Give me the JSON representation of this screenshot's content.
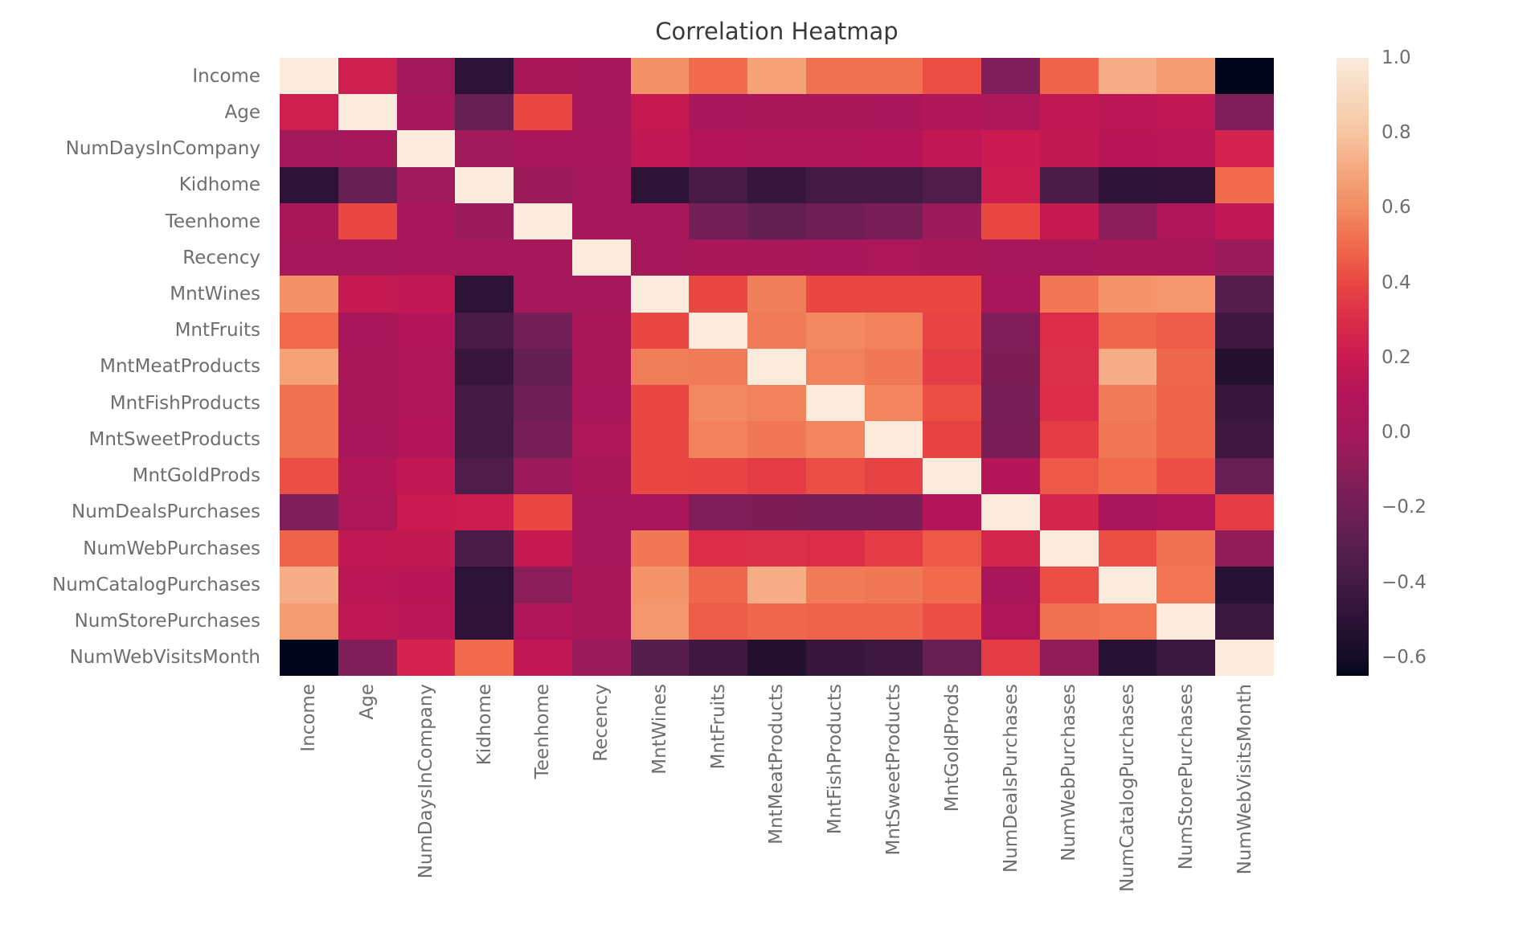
{
  "chart_data": {
    "type": "heatmap",
    "title": "Correlation Heatmap",
    "legend_position": "right",
    "grid": false,
    "labels": [
      "Income",
      "Age",
      "NumDaysInCompany",
      "Kidhome",
      "Teenhome",
      "Recency",
      "MntWines",
      "MntFruits",
      "MntMeatProducts",
      "MntFishProducts",
      "MntSweetProducts",
      "MntGoldProds",
      "NumDealsPurchases",
      "NumWebPurchases",
      "NumCatalogPurchases",
      "NumStorePurchases",
      "NumWebVisitsMonth"
    ],
    "matrix": [
      [
        1.0,
        0.22,
        -0.02,
        -0.5,
        0.03,
        0.0,
        0.62,
        0.5,
        0.68,
        0.52,
        0.52,
        0.42,
        -0.15,
        0.48,
        0.72,
        0.65,
        -0.65
      ],
      [
        0.22,
        1.0,
        0.0,
        -0.25,
        0.4,
        0.0,
        0.18,
        0.02,
        0.03,
        0.03,
        0.02,
        0.08,
        0.04,
        0.16,
        0.14,
        0.15,
        -0.15
      ],
      [
        -0.02,
        0.0,
        1.0,
        -0.03,
        0.02,
        0.02,
        0.16,
        0.1,
        0.08,
        0.08,
        0.1,
        0.16,
        0.2,
        0.17,
        0.12,
        0.13,
        0.25
      ],
      [
        -0.5,
        -0.25,
        -0.03,
        1.0,
        -0.04,
        0.01,
        -0.5,
        -0.38,
        -0.45,
        -0.4,
        -0.4,
        -0.35,
        0.21,
        -0.37,
        -0.5,
        -0.49,
        0.5
      ],
      [
        0.03,
        0.4,
        0.02,
        -0.04,
        1.0,
        0.01,
        0.0,
        -0.2,
        -0.26,
        -0.21,
        -0.18,
        -0.04,
        0.4,
        0.18,
        -0.1,
        0.06,
        0.15
      ],
      [
        0.0,
        0.0,
        0.02,
        0.01,
        0.01,
        1.0,
        0.01,
        0.03,
        0.03,
        0.02,
        0.04,
        0.03,
        0.01,
        0.01,
        0.03,
        0.03,
        -0.05
      ],
      [
        0.62,
        0.18,
        0.16,
        -0.5,
        0.0,
        0.01,
        1.0,
        0.4,
        0.56,
        0.4,
        0.4,
        0.4,
        0.02,
        0.54,
        0.63,
        0.64,
        -0.32
      ],
      [
        0.5,
        0.02,
        0.1,
        -0.38,
        -0.2,
        0.03,
        0.4,
        1.0,
        0.55,
        0.59,
        0.57,
        0.39,
        -0.15,
        0.3,
        0.49,
        0.46,
        -0.42
      ],
      [
        0.68,
        0.03,
        0.08,
        -0.45,
        -0.26,
        0.03,
        0.56,
        0.55,
        1.0,
        0.57,
        0.54,
        0.36,
        -0.16,
        0.31,
        0.72,
        0.49,
        -0.54
      ],
      [
        0.52,
        0.03,
        0.08,
        -0.4,
        -0.21,
        0.02,
        0.4,
        0.59,
        0.57,
        1.0,
        0.58,
        0.42,
        -0.18,
        0.3,
        0.55,
        0.48,
        -0.45
      ],
      [
        0.52,
        0.02,
        0.1,
        -0.4,
        -0.18,
        0.04,
        0.4,
        0.57,
        0.54,
        0.58,
        1.0,
        0.38,
        -0.17,
        0.36,
        0.54,
        0.48,
        -0.43
      ],
      [
        0.42,
        0.08,
        0.16,
        -0.35,
        -0.04,
        0.03,
        0.4,
        0.39,
        0.36,
        0.42,
        0.38,
        1.0,
        0.1,
        0.45,
        0.5,
        0.42,
        -0.25
      ],
      [
        -0.15,
        0.04,
        0.2,
        0.21,
        0.4,
        0.01,
        0.02,
        -0.15,
        -0.16,
        -0.18,
        -0.17,
        0.1,
        1.0,
        0.26,
        0.02,
        0.07,
        0.36
      ],
      [
        0.48,
        0.16,
        0.17,
        -0.37,
        0.18,
        0.01,
        0.54,
        0.3,
        0.31,
        0.3,
        0.36,
        0.45,
        0.26,
        1.0,
        0.42,
        0.52,
        -0.08
      ],
      [
        0.72,
        0.14,
        0.12,
        -0.5,
        -0.1,
        0.03,
        0.63,
        0.49,
        0.72,
        0.55,
        0.54,
        0.5,
        0.02,
        0.42,
        1.0,
        0.53,
        -0.52
      ],
      [
        0.65,
        0.15,
        0.13,
        -0.49,
        0.06,
        0.03,
        0.64,
        0.46,
        0.49,
        0.48,
        0.48,
        0.42,
        0.07,
        0.52,
        0.53,
        1.0,
        -0.44
      ],
      [
        -0.65,
        -0.15,
        0.25,
        0.5,
        0.15,
        -0.05,
        -0.32,
        -0.42,
        -0.54,
        -0.45,
        -0.43,
        -0.25,
        0.36,
        -0.08,
        -0.52,
        -0.44,
        1.0
      ]
    ],
    "colormap": {
      "name": "rocket",
      "vmin": -0.65,
      "vmax": 1.0,
      "stops": [
        {
          "v": 1.0,
          "c": "#FAEBDD"
        },
        {
          "v": 0.9,
          "c": "#F8D9BE"
        },
        {
          "v": 0.8,
          "c": "#F7C5A2"
        },
        {
          "v": 0.7,
          "c": "#F6A77F"
        },
        {
          "v": 0.6,
          "c": "#F28C62"
        },
        {
          "v": 0.5,
          "c": "#F06A4D"
        },
        {
          "v": 0.4,
          "c": "#E84742"
        },
        {
          "v": 0.3,
          "c": "#DB2C4A"
        },
        {
          "v": 0.2,
          "c": "#CA1A51"
        },
        {
          "v": 0.1,
          "c": "#B31558"
        },
        {
          "v": 0.0,
          "c": "#A6185A"
        },
        {
          "v": -0.1,
          "c": "#8B1D58"
        },
        {
          "v": -0.2,
          "c": "#731F57"
        },
        {
          "v": -0.3,
          "c": "#591F4F"
        },
        {
          "v": -0.4,
          "c": "#431A43"
        },
        {
          "v": -0.5,
          "c": "#2C1235"
        },
        {
          "v": -0.6,
          "c": "#150D27"
        },
        {
          "v": -0.65,
          "c": "#03051A"
        }
      ]
    },
    "colorbar_ticks": [
      {
        "v": 1.0,
        "label": "1.0"
      },
      {
        "v": 0.8,
        "label": "0.8"
      },
      {
        "v": 0.6,
        "label": "0.6"
      },
      {
        "v": 0.4,
        "label": "0.4"
      },
      {
        "v": 0.2,
        "label": "0.2"
      },
      {
        "v": 0.0,
        "label": "0.0"
      },
      {
        "v": -0.2,
        "label": "−0.2"
      },
      {
        "v": -0.4,
        "label": "−0.4"
      },
      {
        "v": -0.6,
        "label": "−0.6"
      }
    ]
  },
  "style": {
    "background": "#ffffff",
    "title_color": "#3a3a3a",
    "tick_label_color": "#6e6e6e"
  }
}
